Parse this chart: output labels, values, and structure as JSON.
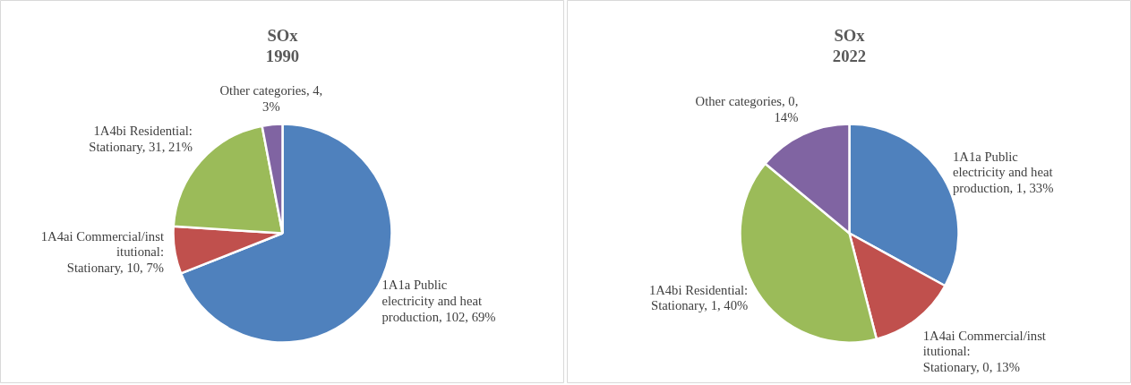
{
  "chart_data": [
    {
      "type": "pie",
      "title": "SOx\n1990",
      "categories": [
        "1A1a Public electricity and heat production",
        "1A4ai Commercial/institutional: Stationary",
        "1A4bi Residential: Stationary",
        "Other categories"
      ],
      "values": [
        69,
        7,
        21,
        3
      ],
      "value_labels": [
        "102, 69%",
        "10, 7%",
        "31, 21%",
        "4, 3%"
      ],
      "colors": [
        "#4f81bd",
        "#c0504d",
        "#9bbb59",
        "#8064a2"
      ]
    },
    {
      "type": "pie",
      "title": "SOx\n2022",
      "categories": [
        "1A1a Public electricity and heat production",
        "1A4ai Commercial/institutional: Stationary",
        "1A4bi Residential: Stationary",
        "Other categories"
      ],
      "values": [
        33,
        13,
        40,
        14
      ],
      "value_labels": [
        "1, 33%",
        "0, 13%",
        "1, 40%",
        "0, 14%"
      ],
      "colors": [
        "#4f81bd",
        "#c0504d",
        "#9bbb59",
        "#8064a2"
      ]
    }
  ]
}
